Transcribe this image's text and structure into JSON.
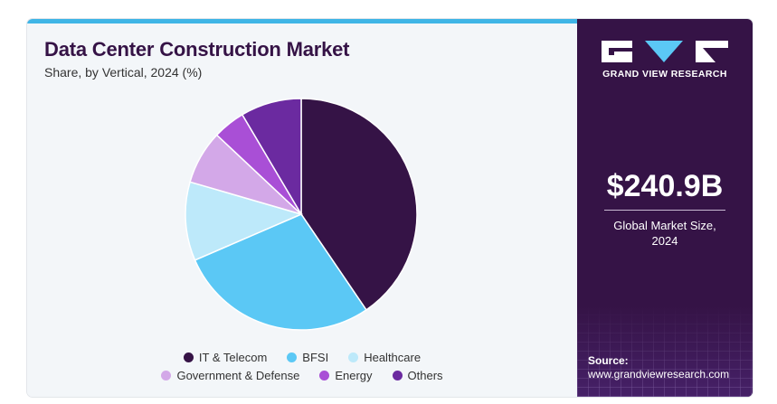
{
  "title": "Data Center Construction Market",
  "subtitle": "Share, by Vertical, 2024 (%)",
  "brand": "GRAND VIEW RESEARCH",
  "market_value": "$240.9B",
  "market_label_line1": "Global Market Size,",
  "market_label_line2": "2024",
  "source_label": "Source:",
  "source_url": "www.grandviewresearch.com",
  "colors": {
    "accent_bar": "#3fb5e6",
    "panel": "#351346"
  },
  "chart_data": {
    "type": "pie",
    "title": "Data Center Construction Market",
    "subtitle": "Share, by Vertical, 2024 (%)",
    "legend_placement": "bottom",
    "slices": [
      {
        "name": "IT & Telecom",
        "value": 40.5,
        "color": "#351346"
      },
      {
        "name": "BFSI",
        "value": 28.0,
        "color": "#5bc8f5"
      },
      {
        "name": "Healthcare",
        "value": 11.0,
        "color": "#bde9fa"
      },
      {
        "name": "Government & Defense",
        "value": 7.5,
        "color": "#d3a8e8"
      },
      {
        "name": "Energy",
        "value": 4.5,
        "color": "#a94fd6"
      },
      {
        "name": "Others",
        "value": 8.5,
        "color": "#6b2aa0"
      }
    ]
  }
}
